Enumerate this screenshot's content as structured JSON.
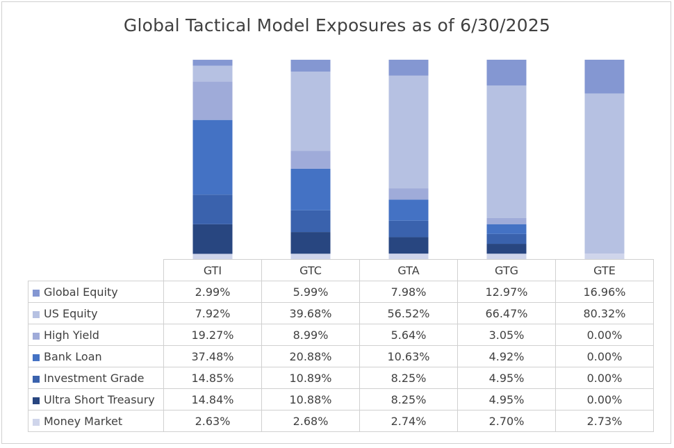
{
  "chart_data": {
    "type": "bar",
    "stacked": true,
    "title": "Global Tactical Model Exposures as of 6/30/2025",
    "categories": [
      "GTI",
      "GTC",
      "GTA",
      "GTG",
      "GTE"
    ],
    "ylim": [
      0,
      100
    ],
    "grid": false,
    "legend": "data-table-below",
    "series": [
      {
        "name": "Global Equity",
        "color": "#8497d2",
        "values": [
          2.99,
          5.99,
          7.98,
          12.97,
          16.96
        ],
        "labels": [
          "2.99%",
          "5.99%",
          "7.98%",
          "12.97%",
          "16.96%"
        ]
      },
      {
        "name": "US Equity",
        "color": "#b6c1e2",
        "values": [
          7.92,
          39.68,
          56.52,
          66.47,
          80.32
        ],
        "labels": [
          "7.92%",
          "39.68%",
          "56.52%",
          "66.47%",
          "80.32%"
        ]
      },
      {
        "name": "High Yield",
        "color": "#9fabd9",
        "values": [
          19.27,
          8.99,
          5.64,
          3.05,
          0.0
        ],
        "labels": [
          "19.27%",
          "8.99%",
          "5.64%",
          "3.05%",
          "0.00%"
        ]
      },
      {
        "name": "Bank Loan",
        "color": "#4472c4",
        "values": [
          37.48,
          20.88,
          10.63,
          4.92,
          0.0
        ],
        "labels": [
          "37.48%",
          "20.88%",
          "10.63%",
          "4.92%",
          "0.00%"
        ]
      },
      {
        "name": "Investment Grade",
        "color": "#3a62ad",
        "values": [
          14.85,
          10.89,
          8.25,
          4.95,
          0.0
        ],
        "labels": [
          "14.85%",
          "10.89%",
          "8.25%",
          "4.95%",
          "0.00%"
        ]
      },
      {
        "name": "Ultra Short Treasury",
        "color": "#284680",
        "values": [
          14.84,
          10.88,
          8.25,
          4.95,
          0.0
        ],
        "labels": [
          "14.84%",
          "10.88%",
          "8.25%",
          "4.95%",
          "0.00%"
        ]
      },
      {
        "name": "Money Market",
        "color": "#cfd5eb",
        "values": [
          2.63,
          2.68,
          2.74,
          2.7,
          2.73
        ],
        "labels": [
          "2.63%",
          "2.68%",
          "2.74%",
          "2.70%",
          "2.73%"
        ]
      }
    ]
  }
}
